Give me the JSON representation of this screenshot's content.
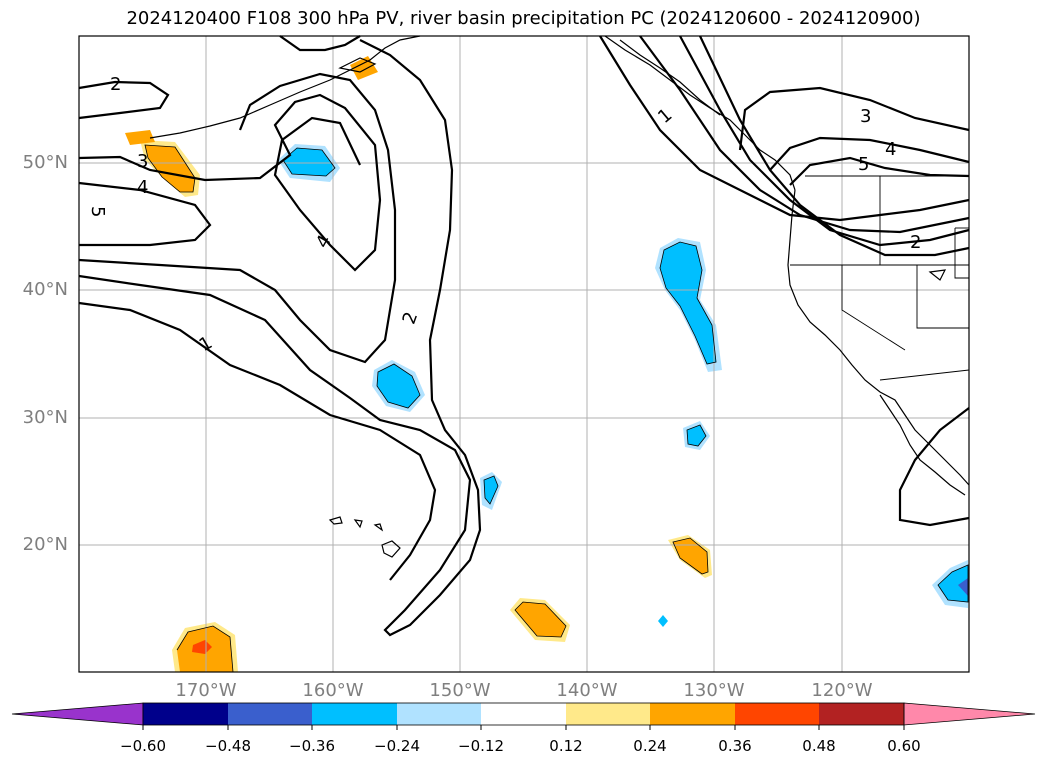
{
  "title": "2024120400 F108 300 hPa PV, river basin precipitation PC (2024120600 - 2024120900)",
  "lat_labels": [
    "50°N",
    "40°N",
    "30°N",
    "20°N"
  ],
  "lon_labels": [
    "170°W",
    "160°W",
    "150°W",
    "140°W",
    "130°W",
    "120°W"
  ],
  "contour_labels": [
    "2",
    "3",
    "4",
    "5",
    "4",
    "1",
    "2",
    "1",
    "3",
    "4",
    "5",
    "2"
  ],
  "colorbar": {
    "ticks": [
      "−0.60",
      "−0.48",
      "−0.36",
      "−0.24",
      "−0.12",
      "0.12",
      "0.24",
      "0.36",
      "0.48",
      "0.60"
    ],
    "colors": [
      "#9933cc",
      "#00008b",
      "#3a5fcd",
      "#00bfff",
      "#b0e2ff",
      "#ffffff",
      "#ffe98a",
      "#ffa500",
      "#ff4500",
      "#b22222",
      "#ff88aa"
    ]
  },
  "colors": {
    "coast": "#000000",
    "grid": "#b0b0b0",
    "contour": "#000000",
    "neg_light": "#b0e2ff",
    "neg_mid": "#00bfff",
    "neg_dark": "#3a5fcd",
    "pos_light": "#ffe98a",
    "pos_mid": "#ffa500",
    "pos_dark": "#ff4500"
  }
}
